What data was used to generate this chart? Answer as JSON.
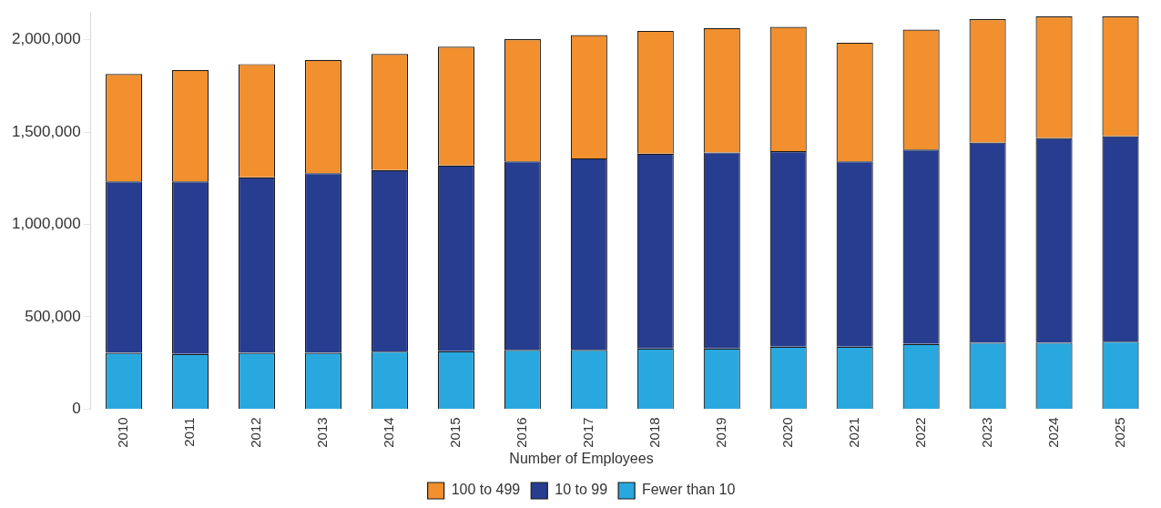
{
  "chart_data": {
    "type": "bar",
    "stacked": true,
    "legend_title": "Number of Employees",
    "legend": "bottom",
    "grid": false,
    "categories": [
      "2010",
      "2011",
      "2012",
      "2013",
      "2014",
      "2015",
      "2016",
      "2017",
      "2018",
      "2019",
      "2020",
      "2021",
      "2022",
      "2023",
      "2024",
      "2025"
    ],
    "ylim": [
      0,
      2150000
    ],
    "yticks": [
      {
        "value": 0,
        "label": "0"
      },
      {
        "value": 500000,
        "label": "500,000"
      },
      {
        "value": 1000000,
        "label": "1,000,000"
      },
      {
        "value": 1500000,
        "label": "1,500,000"
      },
      {
        "value": 2000000,
        "label": "2,000,000"
      }
    ],
    "series": [
      {
        "name": "Fewer than 10",
        "color": "#29a8df",
        "values": [
          305000,
          299000,
          305000,
          305000,
          312000,
          314000,
          321000,
          321000,
          329000,
          329000,
          338000,
          338000,
          353000,
          360000,
          360000,
          366000
        ]
      },
      {
        "name": "10 to 99",
        "color": "#273d8f",
        "values": [
          928000,
          934000,
          950000,
          973000,
          983000,
          1005000,
          1021000,
          1037000,
          1054000,
          1061000,
          1059000,
          1004000,
          1052000,
          1084000,
          1108000,
          1112000
        ]
      },
      {
        "name": "100 to 499",
        "color": "#f28f2e",
        "values": [
          581000,
          603000,
          613000,
          613000,
          628000,
          643000,
          661000,
          667000,
          665000,
          673000,
          673000,
          642000,
          650000,
          667000,
          658000,
          648000
        ]
      }
    ]
  }
}
